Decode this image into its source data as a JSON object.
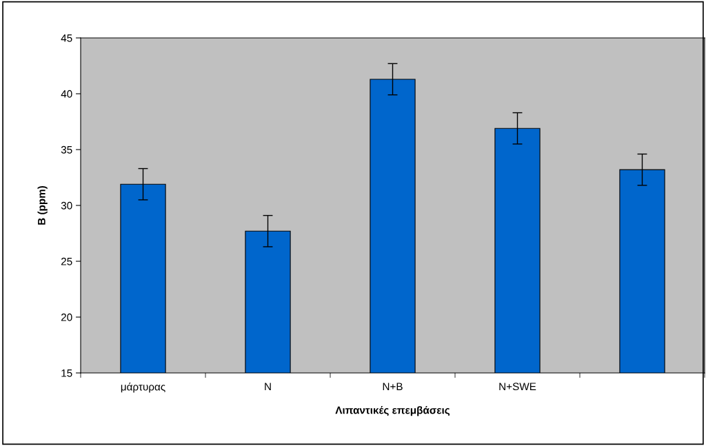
{
  "chart_data": {
    "type": "bar",
    "xlabel": "Λιπαντικές επεμβάσεις",
    "ylabel": "B (ppm)",
    "categories": [
      "μάρτυρας",
      "N",
      "N+B",
      "N+SWE",
      null
    ],
    "values": [
      31.9,
      27.7,
      41.3,
      36.9,
      33.2
    ],
    "errors": [
      1.4,
      1.4,
      1.4,
      1.4,
      1.4
    ],
    "color": "#0066cc",
    "ylim": [
      15,
      45
    ],
    "yticks": [
      15,
      20,
      25,
      30,
      35,
      40,
      45
    ],
    "grid": false,
    "legend": false
  }
}
